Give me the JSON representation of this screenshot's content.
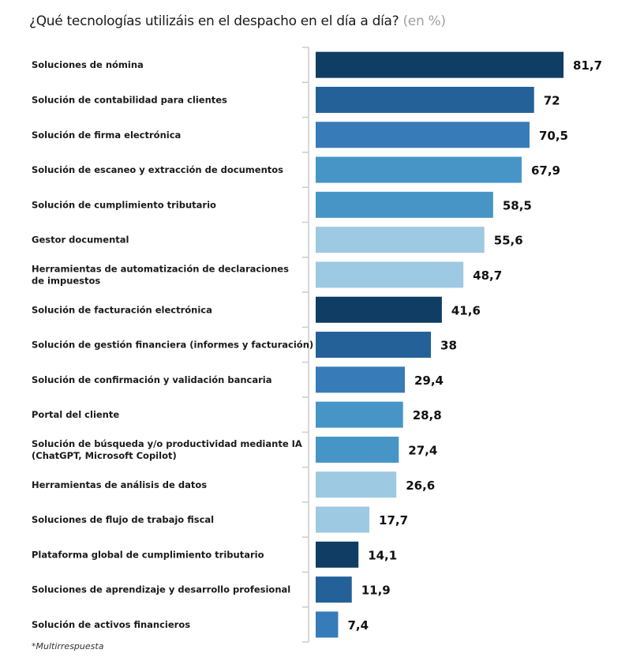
{
  "chart_data": {
    "type": "bar",
    "orientation": "horizontal",
    "title": "¿Qué tecnologías utilizáis en el despacho en el día a día?",
    "title_unit": "(en %)",
    "xlabel": "",
    "ylabel": "",
    "xlim": [
      0,
      100
    ],
    "grid": false,
    "legend": "none",
    "categories": [
      [
        "Soluciones de nómina"
      ],
      [
        "Solución de contabilidad para clientes"
      ],
      [
        "Solución de firma electrónica"
      ],
      [
        "Solución de escaneo y extracción de documentos"
      ],
      [
        "Solución de cumplimiento tributario"
      ],
      [
        "Gestor documental"
      ],
      [
        "Herramientas de automatización de declaraciones",
        "de impuestos"
      ],
      [
        "Solución de facturación electrónica"
      ],
      [
        "Solución de gestión financiera (informes y facturación)"
      ],
      [
        "Solución de confirmación y validación bancaria"
      ],
      [
        "Portal del cliente"
      ],
      [
        "Solución de búsqueda y/o productividad mediante IA",
        "(ChatGPT, Microsoft Copilot)"
      ],
      [
        "Herramientas de análisis de datos"
      ],
      [
        "Soluciones de flujo de trabajo fiscal"
      ],
      [
        "Plataforma global de cumplimiento tributario"
      ],
      [
        "Soluciones de aprendizaje y desarrollo profesional"
      ],
      [
        "Solución de activos financieros"
      ]
    ],
    "values": [
      81.7,
      72,
      70.5,
      67.9,
      58.5,
      55.6,
      48.7,
      41.6,
      38,
      29.4,
      28.8,
      27.4,
      26.6,
      17.7,
      14.1,
      11.9,
      7.4
    ],
    "value_labels": [
      "81,7",
      "72",
      "70,5",
      "67,9",
      "58,5",
      "55,6",
      "48,7",
      "41,6",
      "38",
      "29,4",
      "28,8",
      "27,4",
      "26,6",
      "17,7",
      "14,1",
      "11,9",
      "7,4"
    ],
    "colors": [
      "#0f3d63",
      "#236198",
      "#377bb8",
      "#4795c7",
      "#4795c7",
      "#9ec9e2",
      "#9ec9e2",
      "#0f3d63",
      "#236198",
      "#377bb8",
      "#4795c7",
      "#4795c7",
      "#9ec9e2",
      "#9ec9e2",
      "#0f3d63",
      "#236198",
      "#377bb8"
    ],
    "footnote": "*Multirrespuesta"
  }
}
